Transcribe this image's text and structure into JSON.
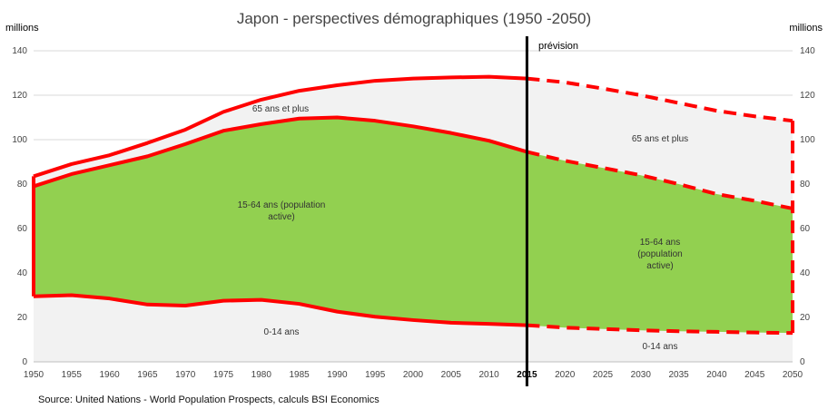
{
  "chart_data": {
    "type": "area",
    "title": "Japon - perspectives démographiques (1950 -2050)",
    "y_unit_left": "millions",
    "y_unit_right": "millions",
    "ylim": [
      0,
      140
    ],
    "y_ticks": [
      0,
      20,
      40,
      60,
      80,
      100,
      120,
      140
    ],
    "x_ticks": [
      "1950",
      "1955",
      "1960",
      "1965",
      "1970",
      "1975",
      "1980",
      "1985",
      "1990",
      "1995",
      "2000",
      "2005",
      "2010",
      "2015",
      "2020",
      "2025",
      "2030",
      "2035",
      "2040",
      "2045",
      "2050"
    ],
    "highlight_tick": "2015",
    "forecast_start": 2015,
    "forecast_label": "prévision",
    "grid": true,
    "x": [
      1950,
      1955,
      1960,
      1965,
      1970,
      1975,
      1980,
      1985,
      1990,
      1995,
      2000,
      2005,
      2010,
      2015,
      2020,
      2025,
      2030,
      2035,
      2040,
      2045,
      2050
    ],
    "boundaries": {
      "age_0_14_upper": [
        29.5,
        30,
        28.5,
        25.8,
        25.3,
        27.5,
        27.9,
        26.1,
        22.6,
        20.3,
        18.8,
        17.6,
        17.1,
        16.5,
        15.4,
        14.8,
        14.2,
        13.8,
        13.5,
        13.2,
        13.0
      ],
      "age_15_64_upper": [
        79,
        84.5,
        88.5,
        92.5,
        98,
        104,
        107,
        109.5,
        110,
        108.5,
        106,
        103,
        99.5,
        94.5,
        90.5,
        87.3,
        84,
        80,
        75.5,
        72.5,
        69
      ],
      "total": [
        83.5,
        89,
        93,
        98.5,
        104.5,
        112.5,
        118,
        122,
        124.5,
        126.5,
        127.5,
        128,
        128.3,
        127.5,
        125.8,
        123,
        120,
        116.5,
        113,
        110.5,
        108.5
      ]
    },
    "series_labels": {
      "old": "65 ans et plus",
      "working": [
        "15-64 ans (population",
        "active)"
      ],
      "young": "0-14 ans",
      "old_forecast": "65 ans et plus",
      "working_forecast": [
        "15-64 ans",
        "(population",
        "active)"
      ],
      "young_forecast": "0-14 ans"
    },
    "colors": {
      "working_fill": "#92d050",
      "outer_fill": "#f2f2f2",
      "line": "#ff0000",
      "divider": "#000000",
      "grid": "#d9d9d9"
    }
  },
  "source": "Source: United Nations - World Population Prospects, calculs BSI Economics"
}
